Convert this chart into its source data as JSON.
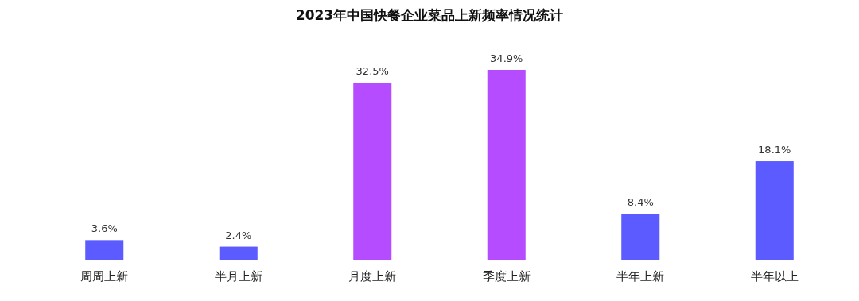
{
  "chart_data": {
    "type": "bar",
    "title": "2023年中国快餐企业菜品上新频率情况统计",
    "categories": [
      "周周上新",
      "半月上新",
      "月度上新",
      "季度上新",
      "半年上新",
      "半年以上"
    ],
    "values": [
      3.6,
      2.4,
      32.5,
      34.9,
      8.4,
      18.1
    ],
    "value_labels": [
      "3.6%",
      "2.4%",
      "32.5%",
      "34.9%",
      "8.4%",
      "18.1%"
    ],
    "colors": [
      "#5b5bff",
      "#5b5bff",
      "#b54cff",
      "#b54cff",
      "#5b5bff",
      "#5b5bff"
    ]
  }
}
